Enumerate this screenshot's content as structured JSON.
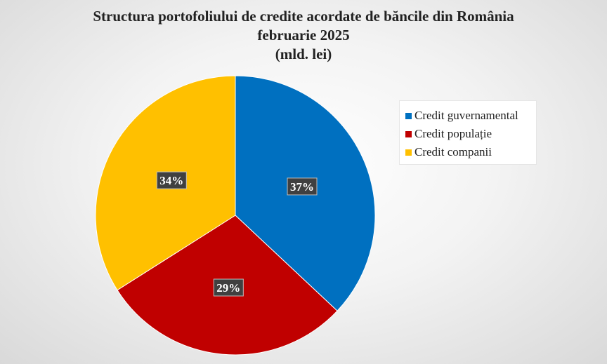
{
  "chart_data": {
    "type": "pie",
    "title": "Structura portofoliului de credite acordate de băncile din România",
    "subtitle": "februarie 2025",
    "unit_label": "(mld. lei)",
    "slices": [
      {
        "name": "Credit guvernamental",
        "value": 37,
        "label": "37%",
        "color": "#0070c0"
      },
      {
        "name": "Credit populație",
        "value": 29,
        "label": "29%",
        "color": "#c00000"
      },
      {
        "name": "Credit companii",
        "value": 34,
        "label": "34%",
        "color": "#ffc000"
      }
    ],
    "start_angle_deg": 0,
    "direction": "clockwise",
    "legend_position": "right",
    "data_label_style": "dark-box-white-text"
  }
}
